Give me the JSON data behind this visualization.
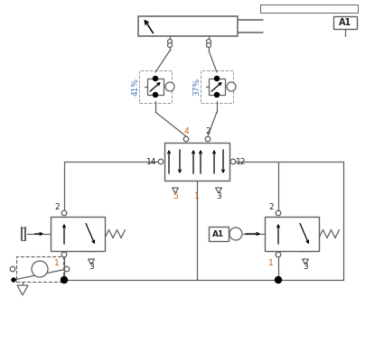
{
  "bg_color": "#ffffff",
  "line_color": "#606060",
  "blue": "#4472c4",
  "orange": "#c55a11",
  "dark": "#222222",
  "gray_dash": "#999999",
  "figsize": [
    4.04,
    3.91
  ],
  "dpi": 100
}
